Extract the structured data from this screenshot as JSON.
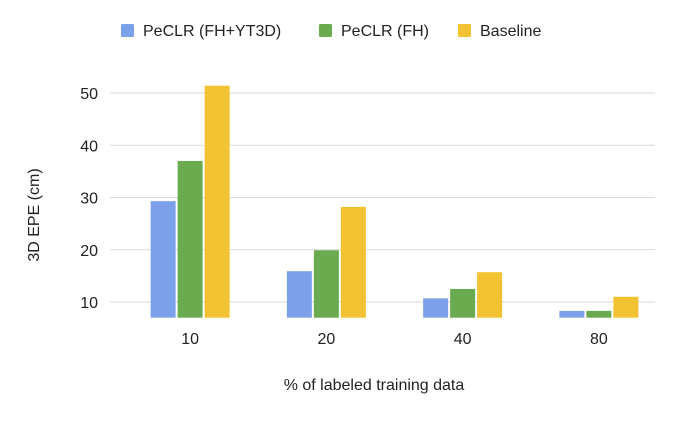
{
  "chart_data": {
    "type": "bar",
    "categories": [
      "10",
      "20",
      "40",
      "80"
    ],
    "series": [
      {
        "name": "PeCLR (FH+YT3D)",
        "color": "#7BA1EB",
        "values": [
          29.3,
          15.9,
          10.7,
          8.3
        ]
      },
      {
        "name": "PeCLR (FH)",
        "color": "#6AAB50",
        "values": [
          37.0,
          19.9,
          12.5,
          8.3
        ]
      },
      {
        "name": "Baseline",
        "color": "#F2C232",
        "values": [
          51.4,
          28.2,
          15.7,
          11.0
        ]
      }
    ],
    "xlabel": "% of labeled training data",
    "ylabel": "3D EPE (cm)",
    "ylim": [
      7,
      53
    ],
    "yticks": [
      10,
      20,
      30,
      40,
      50
    ],
    "grid": true,
    "legend_position": "top"
  }
}
